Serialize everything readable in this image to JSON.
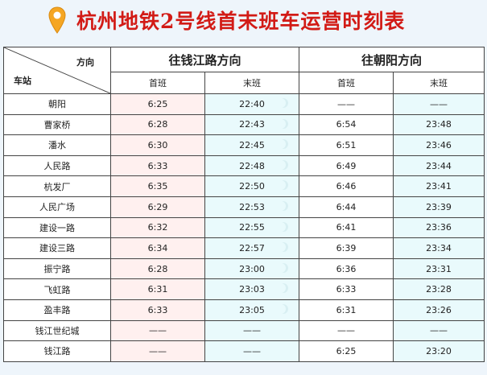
{
  "title": "杭州地铁2号线首末班车运营时刻表",
  "colors": {
    "title": "#d21b16",
    "pin": "#f5a623",
    "west_first_bg": "#fff0ef",
    "last_bg": "#e9fafc"
  },
  "header": {
    "corner_direction": "方向",
    "corner_station": "车站",
    "west_direction": "往钱江路方向",
    "east_direction": "往朝阳方向",
    "first_train": "首班",
    "last_train": "末班"
  },
  "rows": [
    {
      "station": "朝阳",
      "w_first": "6:25",
      "w_last": "22:40",
      "e_first": "——",
      "e_last": "——"
    },
    {
      "station": "曹家桥",
      "w_first": "6:28",
      "w_last": "22:43",
      "e_first": "6:54",
      "e_last": "23:48"
    },
    {
      "station": "潘水",
      "w_first": "6:30",
      "w_last": "22:45",
      "e_first": "6:51",
      "e_last": "23:46"
    },
    {
      "station": "人民路",
      "w_first": "6:33",
      "w_last": "22:48",
      "e_first": "6:49",
      "e_last": "23:44"
    },
    {
      "station": "杭发厂",
      "w_first": "6:35",
      "w_last": "22:50",
      "e_first": "6:46",
      "e_last": "23:41"
    },
    {
      "station": "人民广场",
      "w_first": "6:29",
      "w_last": "22:53",
      "e_first": "6:44",
      "e_last": "23:39"
    },
    {
      "station": "建设一路",
      "w_first": "6:32",
      "w_last": "22:55",
      "e_first": "6:41",
      "e_last": "23:36"
    },
    {
      "station": "建设三路",
      "w_first": "6:34",
      "w_last": "22:57",
      "e_first": "6:39",
      "e_last": "23:34"
    },
    {
      "station": "振宁路",
      "w_first": "6:28",
      "w_last": "23:00",
      "e_first": "6:36",
      "e_last": "23:31"
    },
    {
      "station": "飞虹路",
      "w_first": "6:31",
      "w_last": "23:03",
      "e_first": "6:33",
      "e_last": "23:28"
    },
    {
      "station": "盈丰路",
      "w_first": "6:33",
      "w_last": "23:05",
      "e_first": "6:31",
      "e_last": "23:26"
    },
    {
      "station": "钱江世纪城",
      "w_first": "——",
      "w_last": "——",
      "e_first": "——",
      "e_last": "——"
    },
    {
      "station": "钱江路",
      "w_first": "——",
      "w_last": "——",
      "e_first": "6:25",
      "e_last": "23:20"
    }
  ]
}
